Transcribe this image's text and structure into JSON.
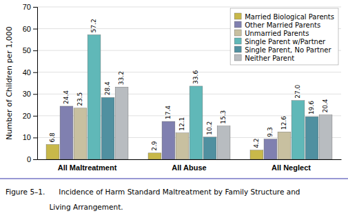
{
  "chart_data": {
    "type": "bar",
    "categories": [
      "All Maltreatment",
      "All Abuse",
      "All Neglect"
    ],
    "series": [
      {
        "name": "Married Biological Parents",
        "color": "#c8b84a",
        "values": [
          6.8,
          2.9,
          4.2
        ]
      },
      {
        "name": "Other Married Parents",
        "color": "#8080b0",
        "values": [
          24.4,
          17.4,
          9.3
        ]
      },
      {
        "name": "Unmarried Parents",
        "color": "#c8c0a0",
        "values": [
          23.5,
          12.1,
          12.6
        ]
      },
      {
        "name": "Single Parent w/Partner",
        "color": "#60b8b8",
        "values": [
          57.2,
          33.6,
          27.0
        ],
        "value_labels": [
          "57.2",
          "33.6",
          "27.0"
        ]
      },
      {
        "name": "Single Parent, No Partner",
        "color": "#5090a0",
        "values": [
          28.4,
          10.2,
          19.6
        ]
      },
      {
        "name": "Neither Parent",
        "color": "#b8bcc0",
        "values": [
          33.2,
          15.3,
          20.4
        ]
      }
    ],
    "y_label": "Number of Children per 1,000",
    "ylim": [
      0,
      70
    ],
    "yticks": [
      0,
      10,
      20,
      30,
      40,
      50,
      60,
      70
    ],
    "grid": true,
    "legend": "upper right",
    "data_labels": true,
    "annotations": [
      "Figure 5–1.      Incidence of Harm Standard Maltreatment by Family Structure and",
      "                   Living Arrangement."
    ]
  }
}
